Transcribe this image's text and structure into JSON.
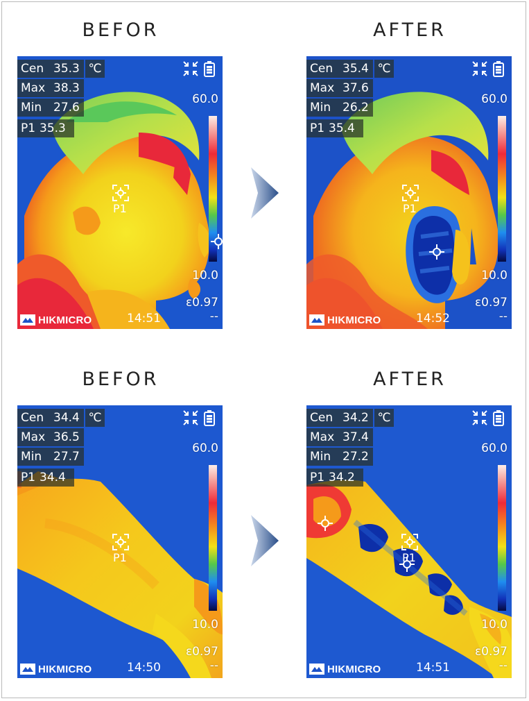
{
  "captions": {
    "before": "BEFOR",
    "after": "AFTER"
  },
  "panels": [
    {
      "id": "face-before",
      "readouts": {
        "cen_label": "Cen",
        "cen": "35.3",
        "unit": "℃",
        "max_label": "Max",
        "max": "38.3",
        "min_label": "Min",
        "min": "27.6",
        "p1_label": "P1",
        "p1": "35.3"
      },
      "scale_max": "60.0",
      "scale_min": "10.0",
      "emissivity": "ε0.97",
      "distance": "--",
      "brand": "HIKMICRO",
      "time": "14:51",
      "p1_tag": "P1"
    },
    {
      "id": "face-after",
      "readouts": {
        "cen_label": "Cen",
        "cen": "35.4",
        "unit": "℃",
        "max_label": "Max",
        "max": "37.6",
        "min_label": "Min",
        "min": "26.2",
        "p1_label": "P1",
        "p1": "35.4"
      },
      "scale_max": "60.0",
      "scale_min": "10.0",
      "emissivity": "ε0.97",
      "distance": "--",
      "brand": "HIKMICRO",
      "time": "14:52",
      "p1_tag": "P1"
    },
    {
      "id": "arm-before",
      "readouts": {
        "cen_label": "Cen",
        "cen": "34.4",
        "unit": "℃",
        "max_label": "Max",
        "max": "36.5",
        "min_label": "Min",
        "min": "27.7",
        "p1_label": "P1",
        "p1": "34.4"
      },
      "scale_max": "60.0",
      "scale_min": "10.0",
      "emissivity": "ε0.97",
      "distance": "--",
      "brand": "HIKMICRO",
      "time": "14:50",
      "p1_tag": "P1"
    },
    {
      "id": "arm-after",
      "readouts": {
        "cen_label": "Cen",
        "cen": "34.2",
        "unit": "℃",
        "max_label": "Max",
        "max": "37.4",
        "min_label": "Min",
        "min": "27.2",
        "p1_label": "P1",
        "p1": "34.2"
      },
      "scale_max": "60.0",
      "scale_min": "10.0",
      "emissivity": "ε0.97",
      "distance": "--",
      "brand": "HIKMICRO",
      "time": "14:51",
      "p1_tag": "P1"
    }
  ],
  "icons": {
    "expand": "fullscreen-exit-icon",
    "battery": "battery-icon",
    "arrow": "chevron-right-icon",
    "max_marker": "max-temp-crosshair-icon",
    "center_marker": "center-point-target-icon"
  },
  "colors": {
    "cold": "#1c52c8",
    "warm": "#f2d21c",
    "hot": "#e8283a",
    "arrow": "#2b4f8a"
  }
}
